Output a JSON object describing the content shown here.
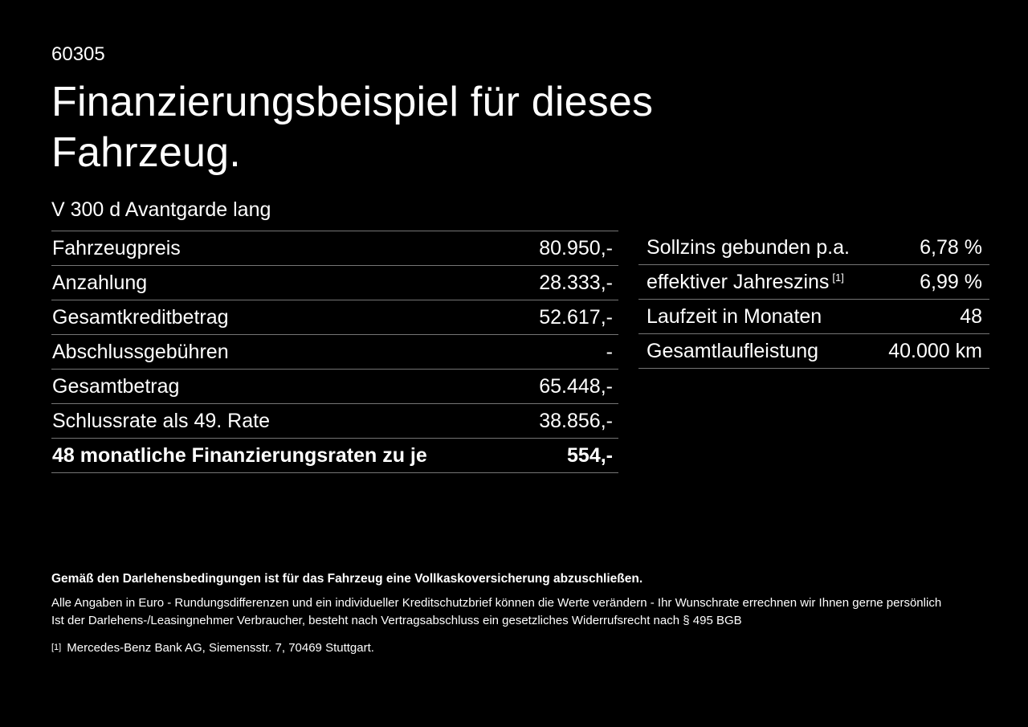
{
  "page": {
    "doc_number": "60305",
    "heading_line1": "Finanzierungsbeispiel für dieses",
    "heading_line2": "Fahrzeug.",
    "model": "V 300 d Avantgarde lang"
  },
  "finance_table": {
    "rows": [
      {
        "label": "Fahrzeugpreis",
        "value": "80.950,-"
      },
      {
        "label": "Anzahlung",
        "value": "28.333,-"
      },
      {
        "label": "Gesamtkreditbetrag",
        "value": "52.617,-"
      },
      {
        "label": "Abschlussgebühren",
        "value": "-"
      },
      {
        "label": "Gesamtbetrag",
        "value": "65.448,-"
      },
      {
        "label": "Schlussrate als 49. Rate",
        "value": "38.856,-"
      },
      {
        "label": "48 monatliche Finanzierungsraten zu je",
        "value": "554,-"
      }
    ]
  },
  "conditions_table": {
    "rows": [
      {
        "label": "Sollzins gebunden p.a.",
        "sup": "",
        "value": "6,78 %"
      },
      {
        "label": "effektiver Jahreszins",
        "sup": "[1]",
        "value": "6,99 %"
      },
      {
        "label": "Laufzeit in Monaten",
        "sup": "",
        "value": "48"
      },
      {
        "label": "Gesamtlaufleistung",
        "sup": "",
        "value": "40.000 km"
      }
    ]
  },
  "footer": {
    "bold_note": "Gemäß den Darlehensbedingungen ist für das Fahrzeug eine Vollkaskoversicherung abzuschließen.",
    "note_line1": "Alle Angaben in Euro - Rundungsdifferenzen und ein individueller Kreditschutzbrief können die Werte verändern - Ihr Wunschrate errechnen wir Ihnen gerne persönlich",
    "note_line2": "Ist der Darlehens-/Leasingnehmer Verbraucher, besteht nach Vertragsabschluss ein gesetzliches Widerrufsrecht nach § 495 BGB",
    "footnote_marker": "[1]",
    "footnote_text": "Mercedes-Benz Bank AG, Siemensstr. 7, 70469 Stuttgart."
  },
  "colors": {
    "background": "#000000",
    "text": "#ffffff",
    "divider": "#757575"
  }
}
